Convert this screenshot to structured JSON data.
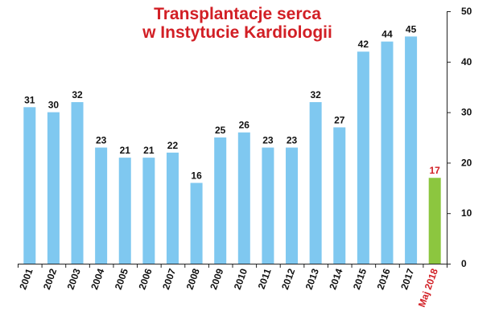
{
  "chart_data": {
    "type": "bar",
    "title": "Transplantacje serca",
    "subtitle": "w Instytucie Kardiologii",
    "categories": [
      "2001",
      "2002",
      "2003",
      "2004",
      "2005",
      "2006",
      "2007",
      "2008",
      "2009",
      "2010",
      "2011",
      "2012",
      "2013",
      "2014",
      "2015",
      "2016",
      "2017",
      "Maj 2018"
    ],
    "values": [
      31,
      30,
      32,
      23,
      21,
      21,
      22,
      16,
      25,
      26,
      23,
      23,
      32,
      27,
      42,
      44,
      45,
      17
    ],
    "ylim": [
      0,
      50
    ],
    "yticks": [
      "0",
      "10",
      "20",
      "30",
      "40",
      "50"
    ],
    "y_axis_side": "right",
    "grid": false,
    "colors": {
      "bar": "#7fc8f0",
      "highlight_bar": "#8cc63f",
      "highlight_label": "#d21f25",
      "title": "#d21f25"
    },
    "highlight_index": 17
  }
}
